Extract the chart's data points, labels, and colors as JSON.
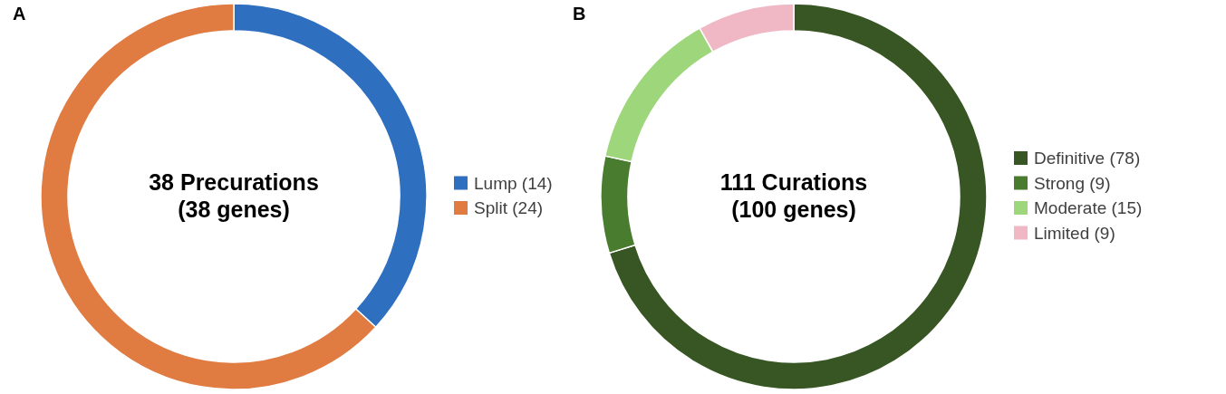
{
  "chart_data": [
    {
      "type": "donut",
      "title": "A",
      "annotations": [
        "38 Precurations",
        "(38 genes)"
      ],
      "categories": [
        "Lump (14)",
        "Split (24)"
      ],
      "values": [
        14,
        24
      ],
      "colors": [
        "#2e6fc0",
        "#e07b42"
      ],
      "legend": "right"
    },
    {
      "type": "donut",
      "title": "B",
      "annotations": [
        "111 Curations",
        "(100 genes)"
      ],
      "categories": [
        "Definitive (78)",
        "Strong (9)",
        "Moderate (15)",
        "Limited (9)"
      ],
      "values": [
        78,
        9,
        15,
        9
      ],
      "colors": [
        "#375623",
        "#4a7c2f",
        "#9dd67b",
        "#f0b8c4"
      ],
      "legend": "right"
    }
  ]
}
